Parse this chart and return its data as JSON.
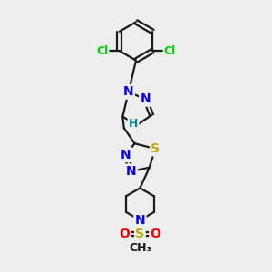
{
  "background_color": "#eeeeee",
  "bond_color": "#1a1a1a",
  "bond_width": 1.6,
  "atom_colors": {
    "C": "#1a1a1a",
    "N": "#0000ee",
    "S": "#bbaa00",
    "O": "#ff0000",
    "Cl": "#00cc00",
    "H": "#008888"
  },
  "font_size": 10,
  "fig_width": 3.0,
  "fig_height": 3.0,
  "dpi": 100,
  "xlim": [
    0,
    10
  ],
  "ylim": [
    0,
    10
  ]
}
